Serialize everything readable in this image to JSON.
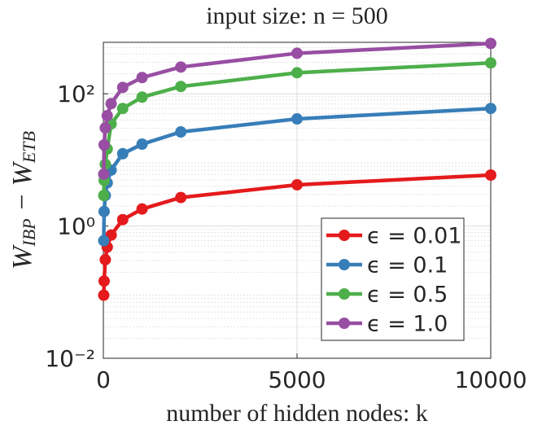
{
  "chart_data": {
    "type": "line",
    "title": "input size: n = 500",
    "xlabel": "number of hidden nodes: k",
    "ylabel_parts": [
      "W",
      "IBP",
      " − W",
      "ETB"
    ],
    "x": [
      10,
      20,
      50,
      100,
      200,
      500,
      1000,
      2000,
      5000,
      10000
    ],
    "series": [
      {
        "name": "ϵ = 0.01",
        "color": "#e41a1c",
        "values": [
          0.09,
          0.147,
          0.31,
          0.48,
          0.73,
          1.25,
          1.81,
          2.7,
          4.2,
          5.9
        ]
      },
      {
        "name": "ϵ = 0.1",
        "color": "#377eb8",
        "values": [
          0.6,
          1.66,
          2.9,
          4.5,
          7.0,
          12.4,
          17.3,
          26.5,
          41.7,
          60
        ]
      },
      {
        "name": "ϵ = 0.5",
        "color": "#4daf4a",
        "values": [
          2.9,
          4.9,
          8.6,
          14.6,
          35,
          60,
          89,
          129,
          208,
          293
        ]
      },
      {
        "name": "ϵ = 1.0",
        "color": "#984ea3",
        "values": [
          6.1,
          16.9,
          30.5,
          46.7,
          71,
          125,
          176,
          254,
          410,
          577
        ]
      }
    ],
    "xlim": [
      0,
      10000
    ],
    "xticks": [
      0,
      5000,
      10000
    ],
    "ylim": [
      0.01,
      600
    ],
    "yticks": [
      {
        "value": 0.01,
        "label": "10⁻²"
      },
      {
        "value": 1,
        "label": "10⁰"
      },
      {
        "value": 100,
        "label": "10²"
      }
    ],
    "ylog": true,
    "grid": true,
    "legend": "southeast"
  }
}
